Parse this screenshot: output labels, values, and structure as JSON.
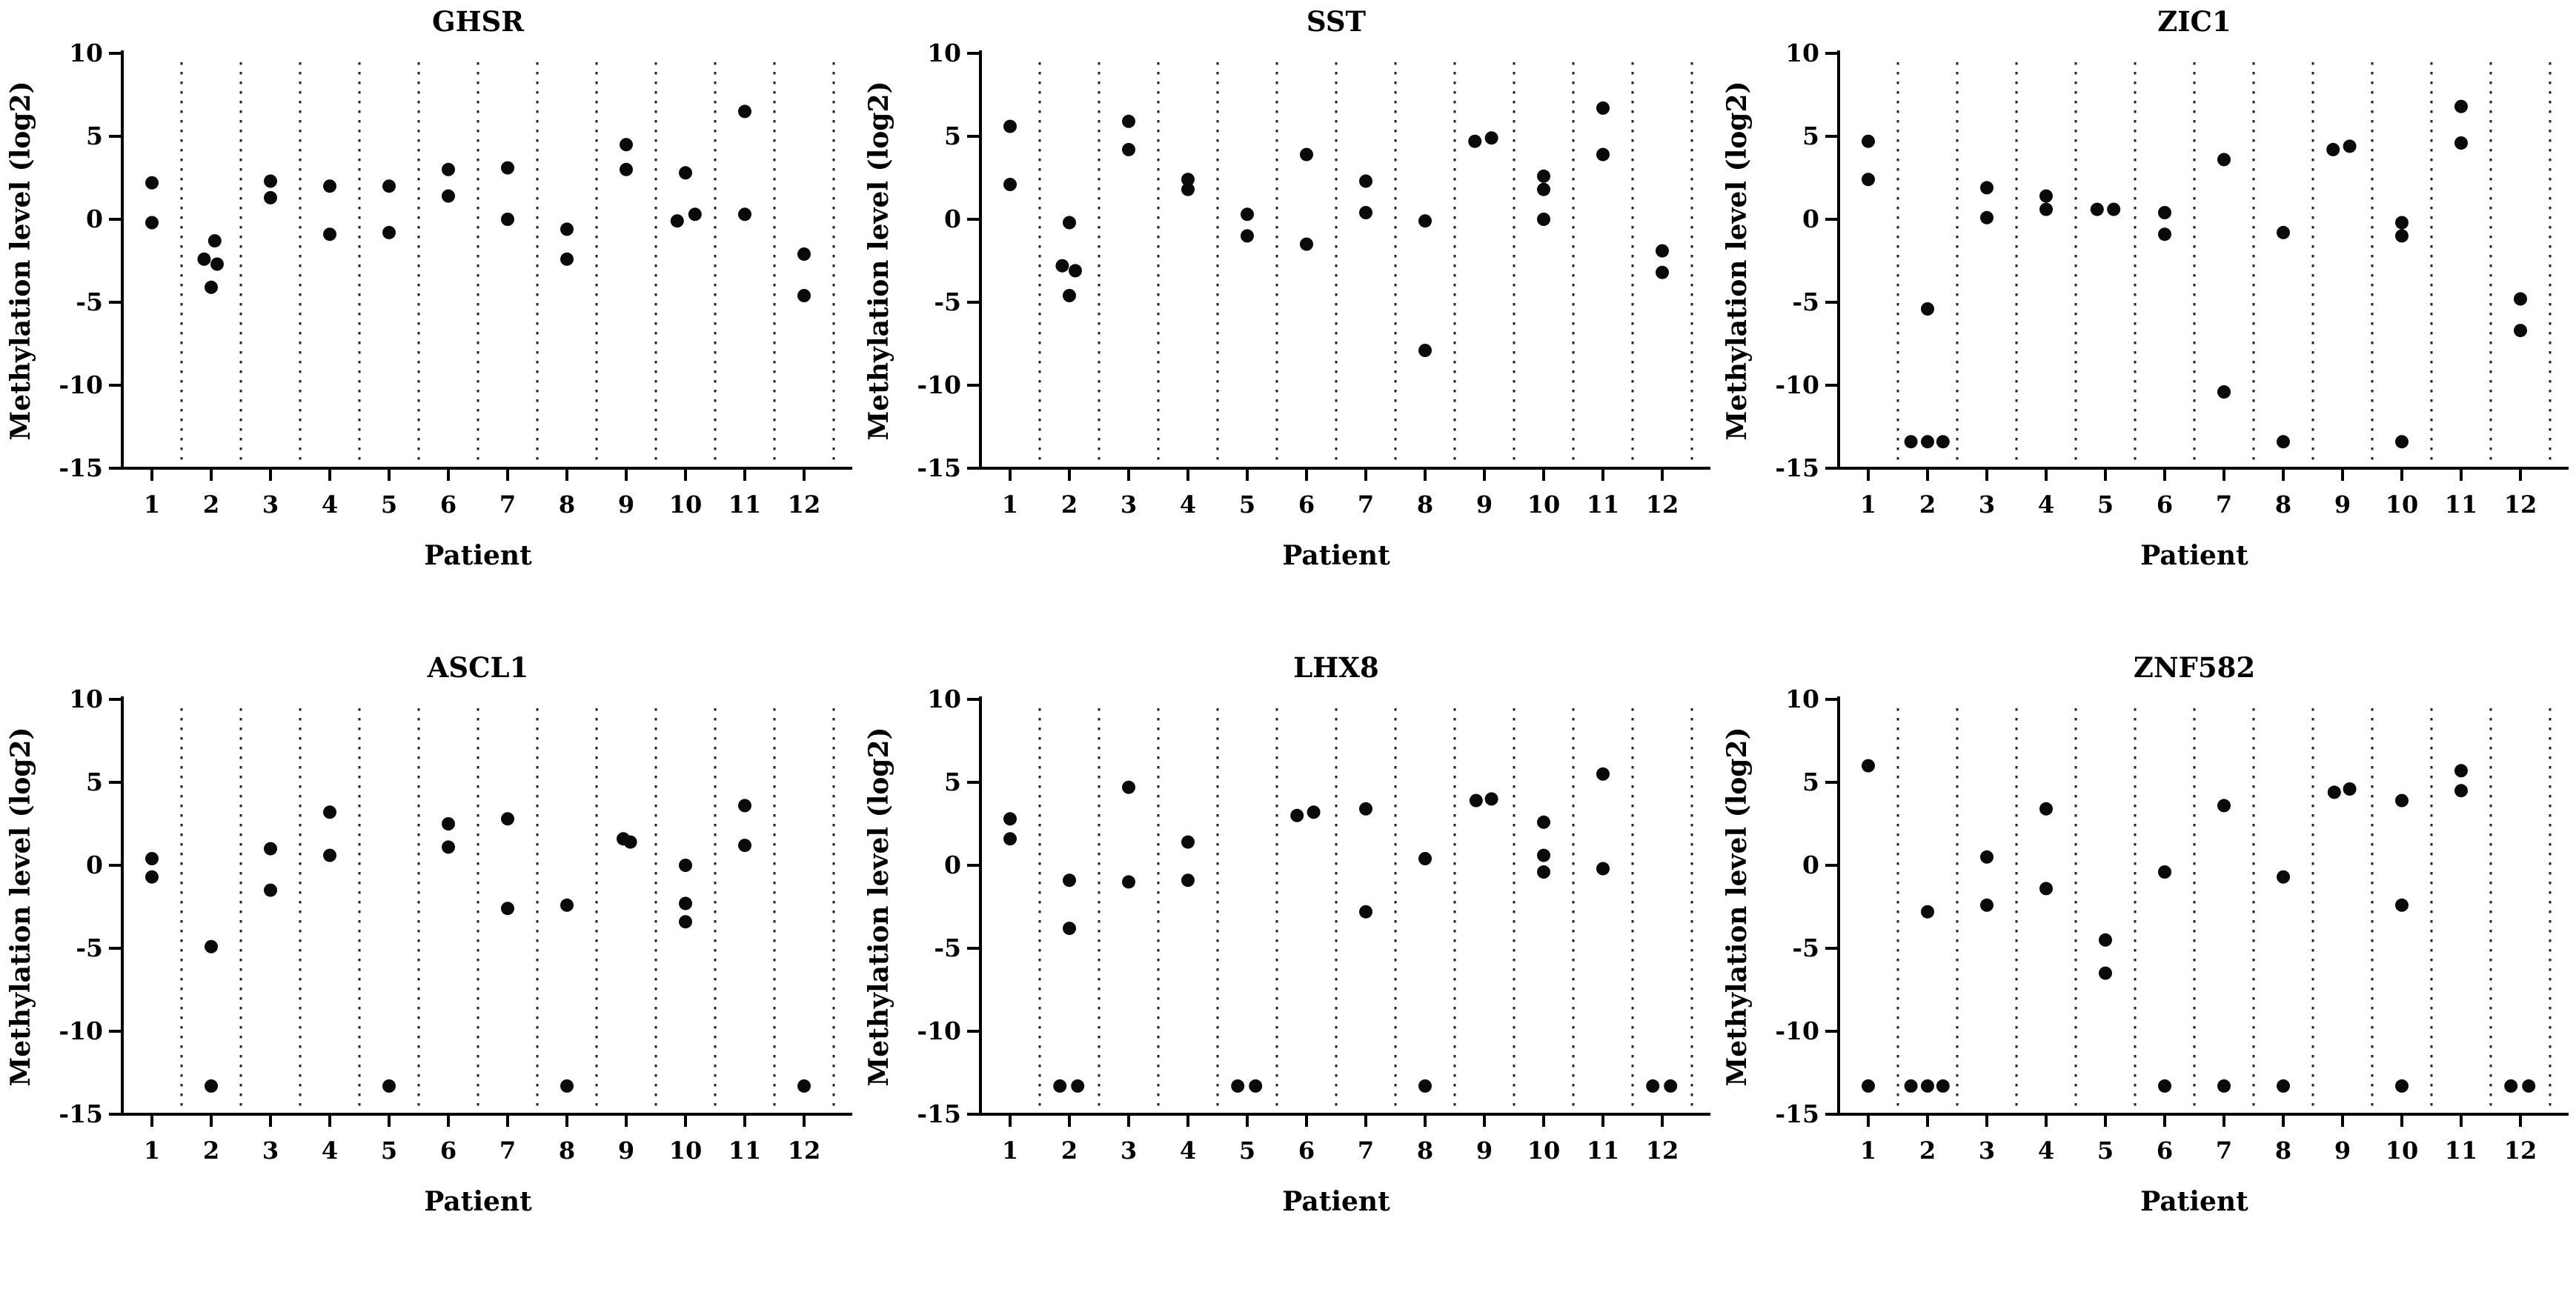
{
  "page": {
    "background": "#ffffff",
    "text_color": "#000000",
    "marker_color": "#0a0a0a",
    "separator_color": "#222222"
  },
  "chart_data": [
    {
      "type": "scatter",
      "title": "GHSR",
      "xlabel": "Patient",
      "ylabel": "Methylation level (log2)",
      "ylim": [
        -15,
        10
      ],
      "yticks": [
        10,
        5,
        0,
        -5,
        -10,
        -15
      ],
      "categories": [
        "1",
        "2",
        "3",
        "4",
        "5",
        "6",
        "7",
        "8",
        "9",
        "10",
        "11",
        "12"
      ],
      "grid": "dotted-vertical-separators",
      "legend": "none",
      "points_by_patient": [
        [
          [
            2.2,
            0
          ],
          [
            -0.2,
            0
          ]
        ],
        [
          [
            -1.3,
            0.06
          ],
          [
            -2.4,
            -0.12
          ],
          [
            -2.7,
            0.1
          ],
          [
            -4.1,
            0
          ]
        ],
        [
          [
            2.3,
            0
          ],
          [
            1.3,
            0
          ]
        ],
        [
          [
            2.0,
            0
          ],
          [
            -0.9,
            0
          ]
        ],
        [
          [
            2.0,
            0
          ],
          [
            -0.8,
            0
          ]
        ],
        [
          [
            3.0,
            0
          ],
          [
            1.4,
            0
          ]
        ],
        [
          [
            3.1,
            0
          ],
          [
            0.0,
            0
          ]
        ],
        [
          [
            -0.6,
            0
          ],
          [
            -2.4,
            0
          ]
        ],
        [
          [
            4.5,
            0
          ],
          [
            3.0,
            0
          ]
        ],
        [
          [
            2.8,
            0
          ],
          [
            0.3,
            0.16
          ],
          [
            -0.1,
            -0.14
          ]
        ],
        [
          [
            6.5,
            0
          ],
          [
            0.3,
            0
          ]
        ],
        [
          [
            -2.1,
            0
          ],
          [
            -4.6,
            0
          ]
        ]
      ]
    },
    {
      "type": "scatter",
      "title": "SST",
      "xlabel": "Patient",
      "ylabel": "Methylation level (log2)",
      "ylim": [
        -15,
        10
      ],
      "yticks": [
        10,
        5,
        0,
        -5,
        -10,
        -15
      ],
      "categories": [
        "1",
        "2",
        "3",
        "4",
        "5",
        "6",
        "7",
        "8",
        "9",
        "10",
        "11",
        "12"
      ],
      "grid": "dotted-vertical-separators",
      "legend": "none",
      "points_by_patient": [
        [
          [
            5.6,
            0
          ],
          [
            2.1,
            0
          ]
        ],
        [
          [
            -0.2,
            0
          ],
          [
            -2.8,
            -0.12
          ],
          [
            -3.1,
            0.1
          ],
          [
            -4.6,
            0
          ]
        ],
        [
          [
            5.9,
            0
          ],
          [
            4.2,
            0
          ]
        ],
        [
          [
            2.4,
            0
          ],
          [
            1.8,
            0
          ]
        ],
        [
          [
            0.3,
            0
          ],
          [
            -1.0,
            0
          ]
        ],
        [
          [
            3.9,
            0
          ],
          [
            -1.5,
            0
          ]
        ],
        [
          [
            2.3,
            0
          ],
          [
            0.4,
            0
          ]
        ],
        [
          [
            -0.1,
            0
          ],
          [
            -7.9,
            0
          ]
        ],
        [
          [
            4.7,
            -0.16
          ],
          [
            4.9,
            0.12
          ]
        ],
        [
          [
            2.6,
            0
          ],
          [
            1.8,
            0
          ],
          [
            0.0,
            0
          ]
        ],
        [
          [
            6.7,
            0
          ],
          [
            3.9,
            0
          ]
        ],
        [
          [
            -1.9,
            0
          ],
          [
            -3.2,
            0
          ]
        ]
      ]
    },
    {
      "type": "scatter",
      "title": "ZIC1",
      "xlabel": "Patient",
      "ylabel": "Methylation level (log2)",
      "ylim": [
        -15,
        10
      ],
      "yticks": [
        10,
        5,
        0,
        -5,
        -10,
        -15
      ],
      "categories": [
        "1",
        "2",
        "3",
        "4",
        "5",
        "6",
        "7",
        "8",
        "9",
        "10",
        "11",
        "12"
      ],
      "grid": "dotted-vertical-separators",
      "legend": "none",
      "points_by_patient": [
        [
          [
            4.7,
            0
          ],
          [
            2.4,
            0
          ]
        ],
        [
          [
            -5.4,
            0
          ],
          [
            -13.4,
            -0.28
          ],
          [
            -13.4,
            0
          ],
          [
            -13.4,
            0.26
          ]
        ],
        [
          [
            1.9,
            0
          ],
          [
            0.1,
            0
          ]
        ],
        [
          [
            1.4,
            0
          ],
          [
            0.6,
            0
          ]
        ],
        [
          [
            0.6,
            -0.14
          ],
          [
            0.6,
            0.14
          ]
        ],
        [
          [
            0.4,
            0
          ],
          [
            -0.9,
            0
          ]
        ],
        [
          [
            3.6,
            0
          ],
          [
            -10.4,
            0
          ]
        ],
        [
          [
            -0.8,
            0
          ],
          [
            -13.4,
            0
          ]
        ],
        [
          [
            4.2,
            -0.16
          ],
          [
            4.4,
            0.12
          ]
        ],
        [
          [
            -0.2,
            0
          ],
          [
            -1.0,
            0
          ],
          [
            -13.4,
            0
          ]
        ],
        [
          [
            6.8,
            0
          ],
          [
            4.6,
            0
          ]
        ],
        [
          [
            -4.8,
            0
          ],
          [
            -6.7,
            0
          ]
        ]
      ]
    },
    {
      "type": "scatter",
      "title": "ASCL1",
      "xlabel": "Patient",
      "ylabel": "Methylation level (log2)",
      "ylim": [
        -15,
        10
      ],
      "yticks": [
        10,
        5,
        0,
        -5,
        -10,
        -15
      ],
      "categories": [
        "1",
        "2",
        "3",
        "4",
        "5",
        "6",
        "7",
        "8",
        "9",
        "10",
        "11",
        "12"
      ],
      "grid": "dotted-vertical-separators",
      "legend": "none",
      "points_by_patient": [
        [
          [
            0.4,
            0
          ],
          [
            -0.7,
            0
          ]
        ],
        [
          [
            -4.9,
            0
          ],
          [
            -13.3,
            0
          ]
        ],
        [
          [
            1.0,
            0
          ],
          [
            -1.5,
            0
          ]
        ],
        [
          [
            3.2,
            0
          ],
          [
            0.6,
            0
          ]
        ],
        [
          [
            -13.3,
            0
          ]
        ],
        [
          [
            2.5,
            0
          ],
          [
            1.1,
            0
          ]
        ],
        [
          [
            2.8,
            0
          ],
          [
            -2.6,
            0
          ]
        ],
        [
          [
            -2.4,
            0
          ],
          [
            -13.3,
            0
          ]
        ],
        [
          [
            1.6,
            -0.05
          ],
          [
            1.4,
            0.07
          ]
        ],
        [
          [
            0.0,
            0
          ],
          [
            -2.3,
            0
          ],
          [
            -3.4,
            0
          ]
        ],
        [
          [
            3.6,
            0
          ],
          [
            1.2,
            0
          ]
        ],
        [
          [
            -13.3,
            0
          ]
        ]
      ]
    },
    {
      "type": "scatter",
      "title": "LHX8",
      "xlabel": "Patient",
      "ylabel": "Methylation level (log2)",
      "ylim": [
        -15,
        10
      ],
      "yticks": [
        10,
        5,
        0,
        -5,
        -10,
        -15
      ],
      "categories": [
        "1",
        "2",
        "3",
        "4",
        "5",
        "6",
        "7",
        "8",
        "9",
        "10",
        "11",
        "12"
      ],
      "grid": "dotted-vertical-separators",
      "legend": "none",
      "points_by_patient": [
        [
          [
            2.8,
            0
          ],
          [
            1.6,
            0
          ]
        ],
        [
          [
            -0.9,
            0
          ],
          [
            -3.8,
            0
          ],
          [
            -13.3,
            -0.16
          ],
          [
            -13.3,
            0.14
          ]
        ],
        [
          [
            4.7,
            0
          ],
          [
            -1.0,
            0
          ]
        ],
        [
          [
            1.4,
            0
          ],
          [
            -0.9,
            0
          ]
        ],
        [
          [
            -13.3,
            -0.16
          ],
          [
            -13.3,
            0.14
          ]
        ],
        [
          [
            3.0,
            -0.16
          ],
          [
            3.2,
            0.12
          ]
        ],
        [
          [
            3.4,
            0
          ],
          [
            -2.8,
            0
          ]
        ],
        [
          [
            0.4,
            0
          ],
          [
            -13.3,
            0
          ]
        ],
        [
          [
            3.9,
            -0.14
          ],
          [
            4.0,
            0.12
          ]
        ],
        [
          [
            2.6,
            0
          ],
          [
            0.6,
            0
          ],
          [
            -0.4,
            0
          ]
        ],
        [
          [
            5.5,
            0
          ],
          [
            -0.2,
            0
          ]
        ],
        [
          [
            -13.3,
            -0.16
          ],
          [
            -13.3,
            0.14
          ]
        ]
      ]
    },
    {
      "type": "scatter",
      "title": "ZNF582",
      "xlabel": "Patient",
      "ylabel": "Methylation level (log2)",
      "ylim": [
        -15,
        10
      ],
      "yticks": [
        10,
        5,
        0,
        -5,
        -10,
        -15
      ],
      "categories": [
        "1",
        "2",
        "3",
        "4",
        "5",
        "6",
        "7",
        "8",
        "9",
        "10",
        "11",
        "12"
      ],
      "grid": "dotted-vertical-separators",
      "legend": "none",
      "points_by_patient": [
        [
          [
            6.0,
            0
          ],
          [
            -13.3,
            0
          ]
        ],
        [
          [
            -2.8,
            0
          ],
          [
            -13.3,
            -0.28
          ],
          [
            -13.3,
            0
          ],
          [
            -13.3,
            0.26
          ]
        ],
        [
          [
            0.5,
            0
          ],
          [
            -2.4,
            0
          ]
        ],
        [
          [
            3.4,
            0
          ],
          [
            -1.4,
            0
          ]
        ],
        [
          [
            -4.5,
            0
          ],
          [
            -6.5,
            0
          ]
        ],
        [
          [
            -0.4,
            0
          ],
          [
            -13.3,
            0
          ]
        ],
        [
          [
            3.6,
            0
          ],
          [
            -13.3,
            0
          ]
        ],
        [
          [
            -0.7,
            0
          ],
          [
            -13.3,
            0
          ]
        ],
        [
          [
            4.4,
            -0.14
          ],
          [
            4.6,
            0.12
          ]
        ],
        [
          [
            3.9,
            0
          ],
          [
            -2.4,
            0
          ],
          [
            -13.3,
            0
          ]
        ],
        [
          [
            5.7,
            0
          ],
          [
            4.5,
            0
          ]
        ],
        [
          [
            -13.3,
            -0.16
          ],
          [
            -13.3,
            0.14
          ]
        ]
      ]
    }
  ]
}
